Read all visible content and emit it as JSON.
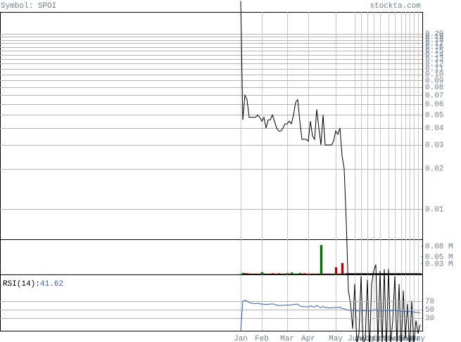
{
  "header": {
    "symbol": "Symbol: SPOI",
    "site": "stockta.com"
  },
  "chart_data": [
    {
      "type": "line",
      "log_scale": true,
      "grid": true,
      "color": "#000000",
      "categories": [
        "Jan",
        null,
        null,
        null,
        null,
        null,
        null,
        null,
        null,
        null,
        "Feb",
        null,
        null,
        null,
        null,
        null,
        null,
        null,
        null,
        null,
        null,
        null,
        "Mar",
        null,
        null,
        null,
        null,
        null,
        null,
        null,
        null,
        null,
        "Apr",
        null,
        null,
        null,
        null,
        null,
        null,
        null,
        null,
        null,
        null,
        null,
        null,
        "May",
        null,
        null,
        null,
        null,
        null,
        null,
        null,
        null,
        "Jun",
        null,
        null,
        "Jul",
        null,
        null,
        "Aug",
        null,
        null,
        "Sep",
        null,
        null,
        "Oct",
        null,
        null,
        null,
        "Nov",
        null,
        null,
        "Dec",
        null,
        null,
        "Jan",
        null,
        "Feb",
        null,
        "Mar",
        null,
        "Apr",
        null,
        "May",
        null
      ],
      "values": [
        0.35,
        0.046,
        0.07,
        0.065,
        0.048,
        0.048,
        0.048,
        0.048,
        0.05,
        0.048,
        0.045,
        0.048,
        0.04,
        0.046,
        0.046,
        0.05,
        0.045,
        0.04,
        0.038,
        0.038,
        0.04,
        0.043,
        0.043,
        0.045,
        0.043,
        0.05,
        0.062,
        0.065,
        0.045,
        0.033,
        0.033,
        0.033,
        0.032,
        0.045,
        0.035,
        0.033,
        0.055,
        0.04,
        0.03,
        0.05,
        0.03,
        0.03,
        0.03,
        0.03,
        0.032,
        0.038,
        0.036,
        0.04,
        0.025,
        0.02,
        0.008,
        0.0025,
        0.002,
        0.0013,
        0.0028,
        0.001,
        0.0012,
        0.0032,
        0.001,
        0.0011,
        0.003,
        0.0009,
        0.0028,
        0.0035,
        0.0039,
        0.001,
        0.0035,
        0.001,
        0.0036,
        0.0009,
        0.0036,
        0.001,
        0.0015,
        0.0032,
        0.001,
        0.0028,
        0.0009,
        0.0025,
        0.0011,
        0.002,
        0.0009,
        0.0021,
        0.001,
        0.0015,
        0.0012,
        0.0014
      ],
      "ylim": [
        0.006,
        0.29
      ],
      "yticks": [
        0.01,
        0.02,
        0.03,
        0.04,
        0.05,
        0.06,
        0.07,
        0.08,
        0.09,
        {
          "value": 0.1,
          "label": "0.10"
        },
        0.11,
        0.12,
        0.13,
        0.14,
        0.15,
        0.16,
        0.17,
        0.18,
        0.19,
        {
          "value": 0.2,
          "label": "0.20"
        }
      ]
    },
    {
      "type": "bar",
      "values": [
        0.001,
        0.004,
        0.003,
        0.003,
        0.002,
        0.002,
        0.002,
        0.002,
        0.002,
        0.002,
        0.006,
        0.002,
        0.002,
        0.002,
        0.002,
        0.003,
        0.002,
        0.002,
        0.003,
        0.002,
        0.002,
        0.002,
        0.003,
        0.002,
        0.005,
        0.002,
        0.002,
        0.002,
        0.004,
        0.002,
        0.003,
        0.002,
        0.002,
        0.002,
        0.002,
        0.002,
        0.002,
        0.002,
        0.083,
        0.002,
        0.002,
        0.002,
        0.002,
        0.002,
        0.002,
        0.02,
        0.002,
        0.002,
        0.032,
        0.002,
        0.003,
        0.003,
        0.003,
        0.003,
        0.003,
        0.003,
        0.003,
        0.003,
        0.003,
        0.003,
        0.003,
        0.003,
        0.003,
        0.003,
        0.003,
        0.003,
        0.003,
        0.003,
        0.003,
        0.003,
        0.003,
        0.003,
        0.003,
        0.003,
        0.003,
        0.003,
        0.003,
        0.003,
        0.003,
        0.003,
        0.003,
        0.003,
        0.003,
        0.003,
        0.003,
        0.003
      ],
      "colors": [
        "#008000",
        "#008000",
        "#cc0000",
        "#cc0000",
        "#cc0000",
        "#008000",
        "#cc0000",
        "#008000",
        "#cc0000",
        "#008000",
        "#008000",
        "#cc0000",
        "#cc0000",
        "#008000",
        "#cc0000",
        "#cc0000",
        "#cc0000",
        "#cc0000",
        "#cc0000",
        "#008000",
        "#008000",
        "#008000",
        "#cc0000",
        "#008000",
        "#008000",
        "#008000",
        "#008000",
        "#008000",
        "#008000",
        "#cc0000",
        "#cc0000",
        "#cc0000",
        "#cc0000",
        "#008000",
        "#cc0000",
        "#cc0000",
        "#008000",
        "#cc0000",
        "#008000",
        "#008000",
        "#cc0000",
        "#cc0000",
        "#cc0000",
        "#008000",
        "#008000",
        "#cc0000",
        "#cc0000",
        "#008000",
        "#cc0000",
        "#cc0000",
        "#000000",
        "#000000",
        "#000000",
        "#000000",
        "#000000",
        "#000000",
        "#000000",
        "#000000",
        "#000000",
        "#000000",
        "#000000",
        "#000000",
        "#000000",
        "#000000",
        "#000000",
        "#000000",
        "#000000",
        "#000000",
        "#000000",
        "#000000",
        "#000000",
        "#000000",
        "#000000",
        "#000000",
        "#000000",
        "#000000",
        "#000000",
        "#000000",
        "#000000",
        "#000000",
        "#000000",
        "#000000",
        "#000000",
        "#000000",
        "#000000",
        "#000000"
      ],
      "ylim": [
        0,
        0.1
      ],
      "yticks": [
        {
          "value": 0.08,
          "label": "0.08 M"
        },
        {
          "value": 0.05,
          "label": "0.05 M"
        },
        {
          "value": 0.03,
          "label": "0.03 M"
        }
      ]
    },
    {
      "type": "line",
      "title": "RSI(14):",
      "color": "#3060c0",
      "grid": true,
      "values": [
        0,
        70,
        72,
        70,
        67,
        65,
        65,
        64,
        65,
        64,
        63,
        63,
        62,
        63,
        63,
        64,
        62,
        61,
        60,
        60,
        60,
        61,
        61,
        61,
        61,
        62,
        63,
        63,
        59,
        57,
        57,
        57,
        56,
        59,
        57,
        56,
        60,
        57,
        55,
        58,
        55,
        55,
        54,
        54,
        55,
        55,
        55,
        56,
        53,
        52,
        50,
        49,
        49,
        48,
        50,
        47,
        47,
        49,
        47,
        48,
        49,
        47,
        48,
        49,
        50,
        47,
        49,
        47,
        49,
        47,
        49,
        47,
        48,
        49,
        47,
        48,
        46,
        47,
        46,
        45,
        46,
        44,
        45,
        43,
        44,
        41.62
      ],
      "ylim": [
        0,
        100
      ],
      "yticks": [
        70,
        50,
        30
      ]
    }
  ]
}
